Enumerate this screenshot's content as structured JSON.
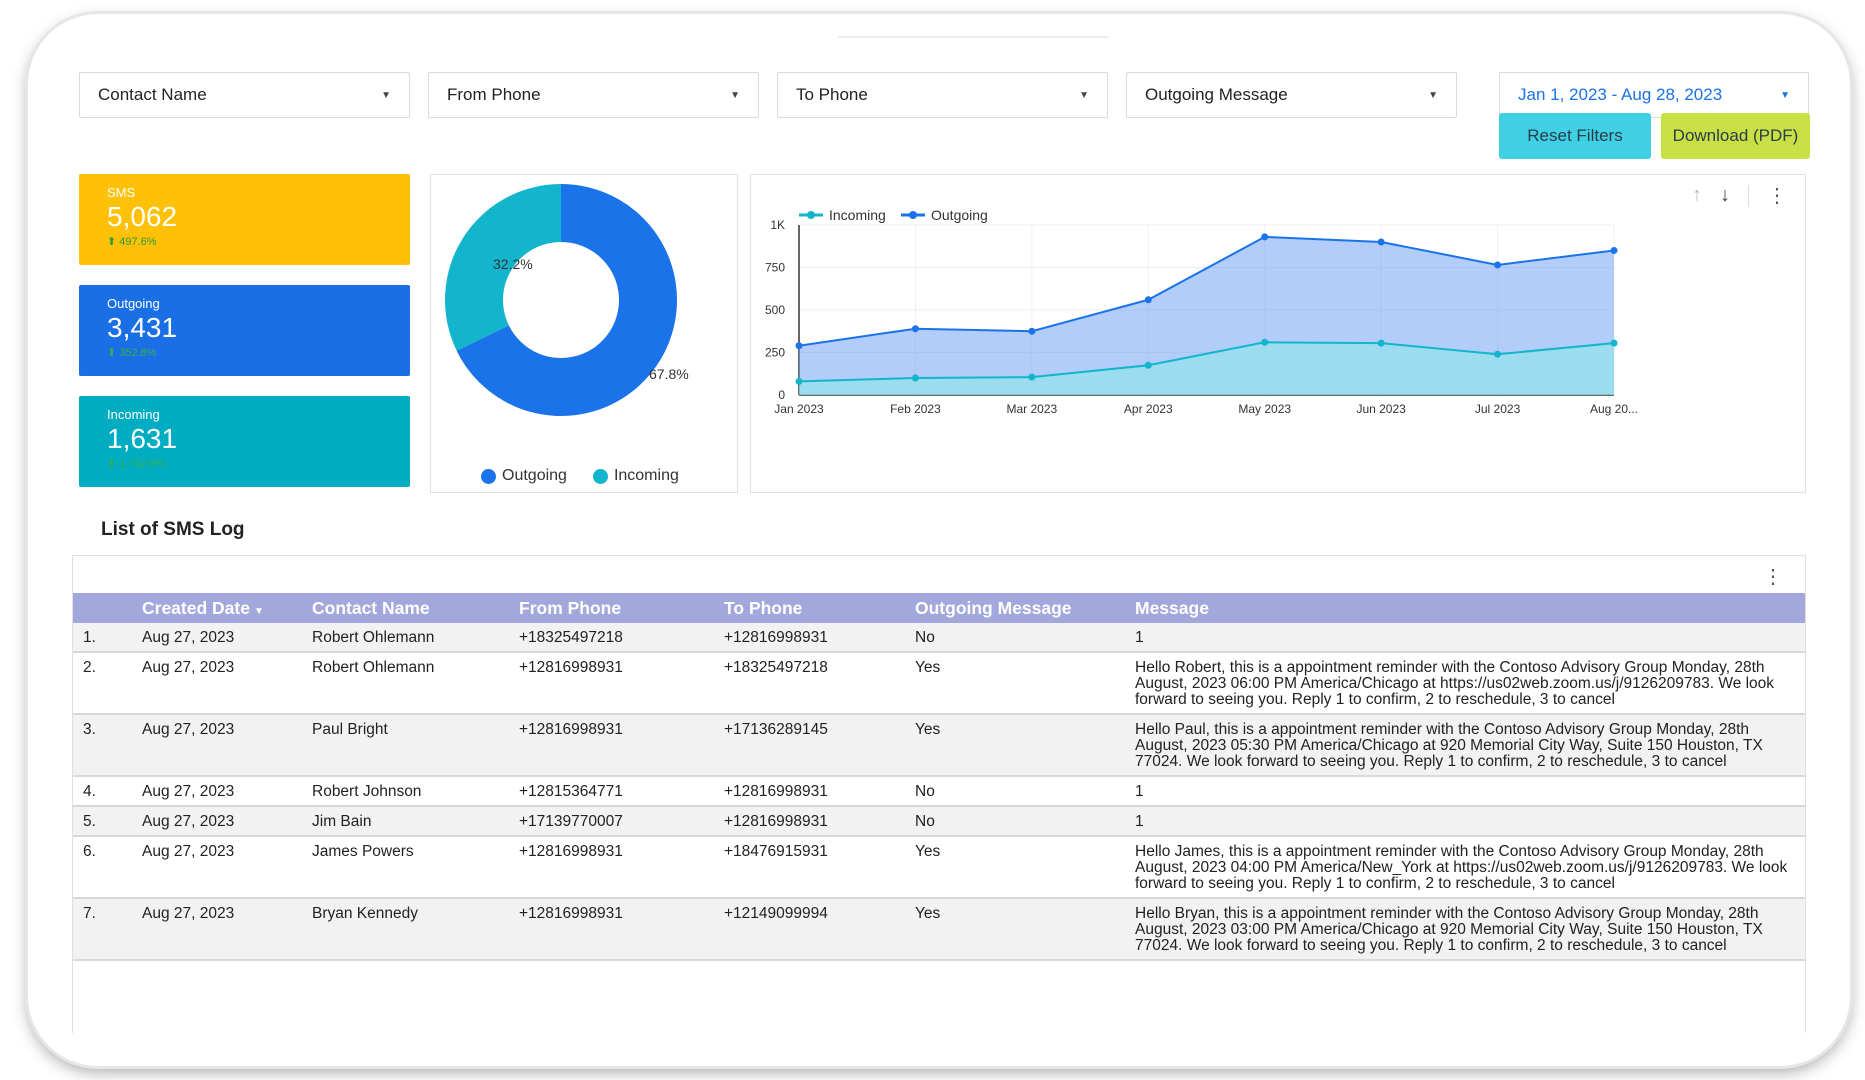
{
  "filters": {
    "contact_name": "Contact Name",
    "from_phone": "From Phone",
    "to_phone": "To Phone",
    "outgoing_message": "Outgoing Message",
    "date_range": "Jan 1, 2023 - Aug 28, 2023"
  },
  "buttons": {
    "reset": "Reset Filters",
    "download": "Download (PDF)"
  },
  "kpis": {
    "sms": {
      "label": "SMS",
      "value": "5,062",
      "change": "⬆ 497.6%"
    },
    "outgoing": {
      "label": "Outgoing",
      "value": "3,431",
      "change": "⬆ 352.8%"
    },
    "incoming": {
      "label": "Incoming",
      "value": "1,631",
      "change": "⬆ 1,732.6%"
    }
  },
  "colors": {
    "outgoing": "#1a73e8",
    "incoming": "#12b5cb",
    "sms": "#ffc107",
    "header": "#a3a8dc"
  },
  "donut": {
    "outgoing_pct": "67.8%",
    "incoming_pct": "32.2%",
    "legend_outgoing": "Outgoing",
    "legend_incoming": "Incoming"
  },
  "chart_data": {
    "type": "area",
    "x": [
      "Jan 2023",
      "Feb 2023",
      "Mar 2023",
      "Apr 2023",
      "May 2023",
      "Jun 2023",
      "Jul 2023",
      "Aug 20..."
    ],
    "series": [
      {
        "name": "Incoming",
        "values": [
          80,
          100,
          105,
          175,
          310,
          305,
          240,
          305
        ]
      },
      {
        "name": "Outgoing",
        "values": [
          290,
          390,
          375,
          560,
          930,
          900,
          765,
          850
        ]
      }
    ],
    "yticks": [
      "0",
      "250",
      "500",
      "750",
      "1K"
    ],
    "ylim": [
      0,
      1000
    ],
    "legend": "top-left",
    "grid": true
  },
  "table": {
    "title": "List of SMS Log",
    "headers": [
      "Created Date",
      "Contact Name",
      "From Phone",
      "To Phone",
      "Outgoing Message",
      "Message"
    ],
    "rows": [
      {
        "num": "1.",
        "date": "Aug 27, 2023",
        "name": "Robert Ohlemann",
        "from": "+18325497218",
        "to": "+12816998931",
        "outgoing": "No",
        "message": "1"
      },
      {
        "num": "2.",
        "date": "Aug 27, 2023",
        "name": "Robert Ohlemann",
        "from": "+12816998931",
        "to": "+18325497218",
        "outgoing": "Yes",
        "message": "Hello Robert, this is a appointment reminder with the Contoso Advisory Group Monday, 28th August, 2023 06:00 PM America/Chicago at https://us02web.zoom.us/j/9126209783. We look forward to seeing you. Reply 1 to confirm, 2 to reschedule, 3 to cancel"
      },
      {
        "num": "3.",
        "date": "Aug 27, 2023",
        "name": "Paul Bright",
        "from": "+12816998931",
        "to": "+17136289145",
        "outgoing": "Yes",
        "message": "Hello Paul, this is a appointment reminder with the Contoso Advisory Group Monday, 28th August, 2023 05:30 PM America/Chicago at 920 Memorial City Way, Suite 150 Houston, TX 77024. We look forward to seeing you. Reply 1 to confirm, 2 to reschedule, 3 to cancel"
      },
      {
        "num": "4.",
        "date": "Aug 27, 2023",
        "name": "Robert Johnson",
        "from": "+12815364771",
        "to": "+12816998931",
        "outgoing": "No",
        "message": "1"
      },
      {
        "num": "5.",
        "date": "Aug 27, 2023",
        "name": "Jim Bain",
        "from": "+17139770007",
        "to": "+12816998931",
        "outgoing": "No",
        "message": "1"
      },
      {
        "num": "6.",
        "date": "Aug 27, 2023",
        "name": "James Powers",
        "from": "+12816998931",
        "to": "+18476915931",
        "outgoing": "Yes",
        "message": "Hello James, this is a appointment reminder with the Contoso Advisory Group Monday, 28th August, 2023 04:00 PM America/New_York at https://us02web.zoom.us/j/9126209783. We look forward to seeing you. Reply 1 to confirm, 2 to reschedule, 3 to cancel"
      },
      {
        "num": "7.",
        "date": "Aug 27, 2023",
        "name": "Bryan Kennedy",
        "from": "+12816998931",
        "to": "+12149099994",
        "outgoing": "Yes",
        "message": "Hello Bryan, this is a appointment reminder with the Contoso Advisory Group Monday, 28th August, 2023 03:00 PM America/Chicago at 920 Memorial City Way, Suite 150 Houston, TX 77024. We look forward to seeing you. Reply 1 to confirm, 2 to reschedule, 3 to cancel"
      }
    ]
  }
}
